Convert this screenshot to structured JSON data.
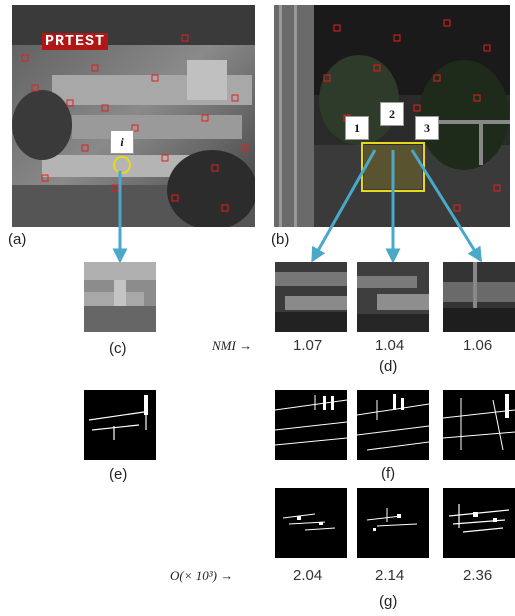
{
  "panels": {
    "a": "(a)",
    "b": "(b)",
    "c": "(c)",
    "d": "(d)",
    "e": "(e)",
    "f": "(f)",
    "g": "(g)"
  },
  "watermark": "PRTEST",
  "point_label": "i",
  "candidate_tags": [
    "1",
    "2",
    "3"
  ],
  "nmi": {
    "label": "NMI",
    "arrow": "→",
    "values": [
      "1.07",
      "1.04",
      "1.06"
    ]
  },
  "overlap": {
    "label": "O(× 10³)",
    "arrow": "→",
    "values": [
      "2.04",
      "2.14",
      "2.36"
    ]
  },
  "colors": {
    "highlight": "#d42020",
    "arrow": "#4aa8c8",
    "selection": "#e8d81c"
  }
}
